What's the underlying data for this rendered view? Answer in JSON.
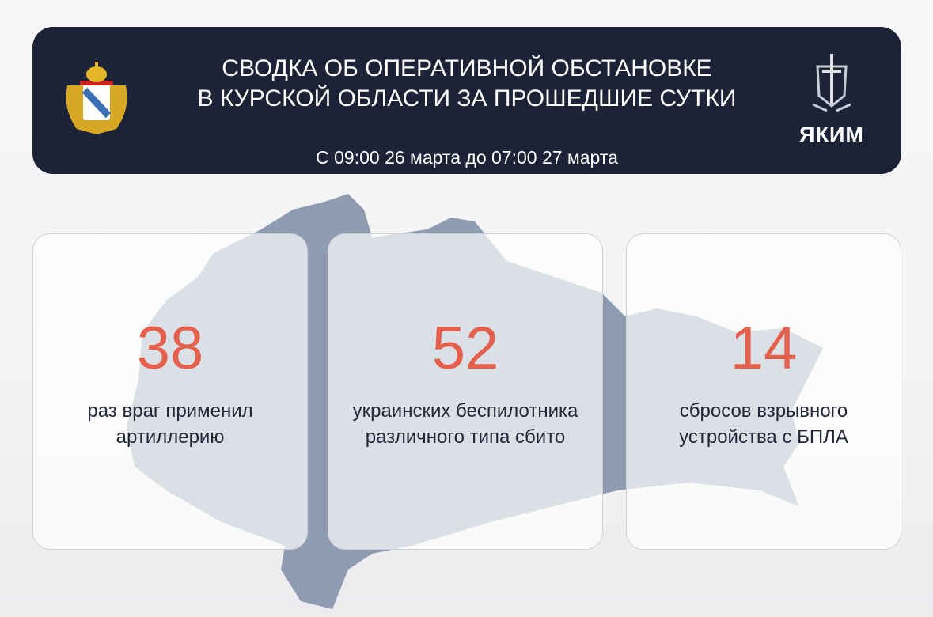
{
  "header": {
    "title_line1": "СВОДКА ОБ ОПЕРАТИВНОЙ ОБСТАНОВКЕ",
    "title_line2": "В КУРСКОЙ ОБЛАСТИ ЗА ПРОШЕДШИЕ СУТКИ",
    "subtitle": "С 09:00 26 марта до 07:00 27 марта",
    "brand": "ЯКИМ"
  },
  "stats": [
    {
      "value": "38",
      "line1": "раз враг применил",
      "line2": "артиллерию"
    },
    {
      "value": "52",
      "line1": "украинских беспилотника",
      "line2": "различного типа сбито"
    },
    {
      "value": "14",
      "line1": "сбросов взрывного",
      "line2": "устройства с БПЛА"
    }
  ],
  "colors": {
    "header_bg": "#1c2336",
    "accent": "#e45f4c",
    "map": "#8e9bb0"
  }
}
